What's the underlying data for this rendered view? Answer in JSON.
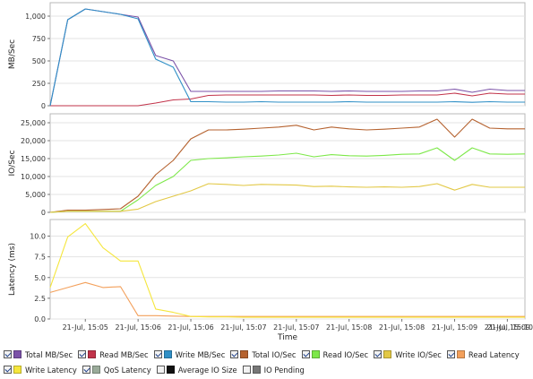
{
  "colors": {
    "total_mb": "#7b52a8",
    "read_mb": "#c2334a",
    "write_mb": "#2f8fc6",
    "total_io": "#b5622f",
    "read_io": "#7de849",
    "write_io": "#e2c845",
    "read_latency": "#f3a05b",
    "write_latency": "#f5e63c",
    "qos_latency": "#9aab9a",
    "avg_io_size": "#111111",
    "io_pending": "#777777"
  },
  "chart_data": [
    {
      "type": "line",
      "ylabel": "MB/Sec",
      "ylim": [
        0,
        1150
      ],
      "yticks": [
        0,
        250,
        500,
        750,
        1000
      ],
      "ytick_labels": [
        "0",
        "250",
        "500",
        "750",
        "1,000"
      ],
      "x": [
        0,
        1,
        2,
        3,
        4,
        5,
        6,
        7,
        8,
        9,
        10,
        11,
        12,
        13,
        14,
        15,
        16,
        17,
        18,
        19,
        20,
        21,
        22,
        23,
        24,
        25,
        26,
        27
      ],
      "series": [
        {
          "name": "Total MB/Sec",
          "color_key": "total_mb",
          "values": [
            0,
            960,
            1080,
            1050,
            1020,
            990,
            560,
            500,
            160,
            160,
            160,
            160,
            160,
            165,
            165,
            165,
            160,
            165,
            160,
            160,
            160,
            165,
            165,
            185,
            150,
            185,
            170,
            170
          ]
        },
        {
          "name": "Read MB/Sec",
          "color_key": "read_mb",
          "values": [
            0,
            0,
            0,
            0,
            0,
            0,
            30,
            65,
            75,
            115,
            120,
            120,
            120,
            120,
            120,
            120,
            115,
            120,
            115,
            115,
            120,
            120,
            120,
            140,
            110,
            140,
            130,
            130
          ]
        },
        {
          "name": "Write MB/Sec",
          "color_key": "write_mb",
          "values": [
            0,
            960,
            1080,
            1050,
            1020,
            970,
            520,
            430,
            45,
            45,
            40,
            40,
            45,
            40,
            40,
            40,
            40,
            45,
            40,
            40,
            40,
            40,
            40,
            45,
            38,
            45,
            40,
            40
          ]
        }
      ]
    },
    {
      "type": "line",
      "ylabel": "IO/Sec",
      "ylim": [
        0,
        27500
      ],
      "yticks": [
        0,
        5000,
        10000,
        15000,
        20000,
        25000
      ],
      "ytick_labels": [
        "0",
        "5,000",
        "10,000",
        "15,000",
        "20,000",
        "25,000"
      ],
      "x": [
        0,
        1,
        2,
        3,
        4,
        5,
        6,
        7,
        8,
        9,
        10,
        11,
        12,
        13,
        14,
        15,
        16,
        17,
        18,
        19,
        20,
        21,
        22,
        23,
        24,
        25,
        26,
        27
      ],
      "series": [
        {
          "name": "Total IO/Sec",
          "color_key": "total_io",
          "values": [
            0,
            600,
            600,
            800,
            1000,
            4500,
            10500,
            14500,
            20500,
            23000,
            23000,
            23200,
            23500,
            23800,
            24300,
            23000,
            23800,
            23300,
            23000,
            23200,
            23500,
            23800,
            26000,
            21000,
            26000,
            23500,
            23300,
            23300
          ]
        },
        {
          "name": "Read IO/Sec",
          "color_key": "read_io",
          "values": [
            0,
            300,
            300,
            300,
            300,
            3500,
            7500,
            10000,
            14500,
            15000,
            15200,
            15500,
            15700,
            16000,
            16500,
            15500,
            16100,
            15800,
            15700,
            15900,
            16200,
            16300,
            18000,
            14500,
            18000,
            16300,
            16200,
            16300
          ]
        },
        {
          "name": "Write IO/Sec",
          "color_key": "write_io",
          "values": [
            0,
            300,
            300,
            300,
            300,
            900,
            3000,
            4500,
            6000,
            8000,
            7800,
            7500,
            7800,
            7700,
            7600,
            7200,
            7300,
            7100,
            7000,
            7100,
            7000,
            7200,
            8000,
            6200,
            7800,
            7000,
            7000,
            7000
          ]
        }
      ]
    },
    {
      "type": "line",
      "ylabel": "Latency (ms)",
      "ylim": [
        0,
        12
      ],
      "yticks": [
        0,
        2.5,
        5.0,
        7.5,
        10.0
      ],
      "ytick_labels": [
        "0.0",
        "2.5",
        "5.0",
        "7.5",
        "10.0"
      ],
      "x": [
        0,
        1,
        2,
        3,
        4,
        5,
        6,
        7,
        8,
        9,
        10,
        11,
        12,
        13,
        14,
        15,
        16,
        17,
        18,
        19,
        20,
        21,
        22,
        23,
        24,
        25,
        26,
        27
      ],
      "xtick_positions": [
        2,
        5,
        8,
        11,
        14,
        17,
        20,
        23,
        26
      ],
      "xtick_labels": [
        "21-Jul, 15:05",
        "21-Jul, 15:06",
        "21-Jul, 15:06",
        "21-Jul, 15:07",
        "21-Jul, 15:07",
        "21-Jul, 15:08",
        "21-Jul, 15:08",
        "21-Jul, 15:09",
        "21-Jul, 15:09"
      ],
      "xtick_last": "21-Jul, 15:10",
      "xlabel": "Time",
      "series": [
        {
          "name": "Read Latency",
          "color_key": "read_latency",
          "values": [
            3.2,
            3.8,
            4.4,
            3.8,
            3.9,
            0.4,
            0.4,
            0.35,
            0.3,
            0.3,
            0.3,
            0.3,
            0.3,
            0.3,
            0.3,
            0.3,
            0.3,
            0.3,
            0.3,
            0.3,
            0.3,
            0.3,
            0.3,
            0.3,
            0.3,
            0.3,
            0.3,
            0.3
          ]
        },
        {
          "name": "Write Latency",
          "color_key": "write_latency",
          "values": [
            3.8,
            9.9,
            11.5,
            8.6,
            7.0,
            7.0,
            1.2,
            0.8,
            0.3,
            0.25,
            0.25,
            0.2,
            0.2,
            0.2,
            0.2,
            0.2,
            0.2,
            0.2,
            0.2,
            0.2,
            0.2,
            0.2,
            0.2,
            0.2,
            0.2,
            0.2,
            0.2,
            0.2
          ]
        }
      ]
    }
  ],
  "legend": {
    "items": [
      {
        "label": "Total MB/Sec",
        "color_key": "total_mb",
        "checked": true
      },
      {
        "label": "Read MB/Sec",
        "color_key": "read_mb",
        "checked": true
      },
      {
        "label": "Write MB/Sec",
        "color_key": "write_mb",
        "checked": true
      },
      {
        "label": "Total IO/Sec",
        "color_key": "total_io",
        "checked": true
      },
      {
        "label": "Read IO/Sec",
        "color_key": "read_io",
        "checked": true
      },
      {
        "label": "Write IO/Sec",
        "color_key": "write_io",
        "checked": true
      },
      {
        "label": "Read Latency",
        "color_key": "read_latency",
        "checked": true
      },
      {
        "label": "Write Latency",
        "color_key": "write_latency",
        "checked": true
      },
      {
        "label": "QoS Latency",
        "color_key": "qos_latency",
        "checked": true
      },
      {
        "label": "Average IO Size",
        "color_key": "avg_io_size",
        "checked": false
      },
      {
        "label": "IO Pending",
        "color_key": "io_pending",
        "checked": false
      }
    ]
  }
}
